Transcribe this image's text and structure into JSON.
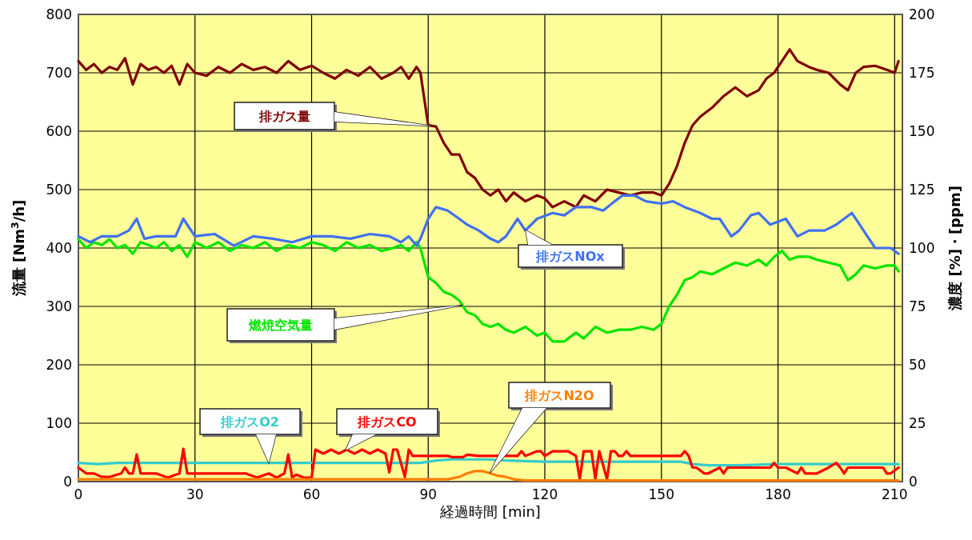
{
  "chart_data": {
    "type": "line",
    "xlabel": "経過時間 [min]",
    "ylabel": "流量 [Nm$^{3}$/h]",
    "y2label": "濃度 [%]・[ppm]",
    "xlim": [
      0,
      212
    ],
    "xticks": [
      0,
      30,
      60,
      90,
      120,
      150,
      180,
      210
    ],
    "ylim": [
      0,
      800
    ],
    "yticks": [
      0,
      100,
      200,
      300,
      400,
      500,
      600,
      700,
      800
    ],
    "y2lim": [
      0,
      200
    ],
    "y2ticks": [
      0,
      25,
      50,
      75,
      100,
      125,
      150,
      175,
      200
    ],
    "grid": true,
    "marker": "none",
    "line_style": "solid",
    "series": [
      {
        "name": "排ガス量",
        "color": "#800000",
        "x": [
          0,
          2,
          4,
          6,
          8,
          10,
          12,
          14,
          16,
          18,
          20,
          22,
          24,
          26,
          28,
          30,
          33,
          36,
          39,
          42,
          45,
          48,
          51,
          54,
          57,
          60,
          63,
          66,
          69,
          72,
          75,
          78,
          81,
          83,
          85,
          87,
          88,
          90,
          92,
          94,
          96,
          98,
          100,
          102,
          104,
          106,
          108,
          110,
          112,
          115,
          118,
          120,
          122,
          125,
          128,
          130,
          133,
          136,
          139,
          142,
          145,
          148,
          150,
          152,
          154,
          156,
          158,
          160,
          163,
          166,
          169,
          172,
          175,
          177,
          179,
          181,
          183,
          185,
          188,
          190,
          193,
          196,
          198,
          200,
          202,
          205,
          208,
          210,
          211
        ],
        "values": [
          720,
          705,
          715,
          700,
          710,
          705,
          725,
          680,
          715,
          705,
          710,
          700,
          712,
          680,
          715,
          700,
          695,
          710,
          700,
          715,
          705,
          710,
          700,
          720,
          705,
          712,
          700,
          690,
          705,
          695,
          710,
          690,
          700,
          710,
          690,
          710,
          700,
          610,
          608,
          580,
          560,
          560,
          530,
          520,
          500,
          490,
          500,
          480,
          495,
          480,
          490,
          485,
          470,
          480,
          470,
          490,
          480,
          500,
          495,
          490,
          495,
          495,
          490,
          510,
          540,
          580,
          610,
          625,
          640,
          660,
          675,
          660,
          670,
          690,
          700,
          720,
          740,
          720,
          710,
          705,
          700,
          680,
          670,
          700,
          710,
          712,
          705,
          700,
          720
        ]
      },
      {
        "name": "燃焼空気量",
        "color": "#00e600",
        "x": [
          0,
          2,
          4,
          6,
          8,
          10,
          12,
          14,
          16,
          18,
          20,
          22,
          24,
          26,
          28,
          30,
          33,
          36,
          39,
          42,
          45,
          48,
          51,
          54,
          57,
          60,
          63,
          66,
          69,
          72,
          75,
          78,
          81,
          83,
          85,
          87,
          88,
          90,
          92,
          94,
          96,
          98,
          100,
          102,
          104,
          106,
          108,
          110,
          112,
          115,
          118,
          120,
          122,
          125,
          128,
          130,
          133,
          136,
          139,
          142,
          145,
          148,
          150,
          152,
          154,
          156,
          158,
          160,
          163,
          166,
          169,
          172,
          175,
          177,
          179,
          181,
          183,
          185,
          188,
          190,
          193,
          196,
          198,
          200,
          202,
          205,
          208,
          210,
          211
        ],
        "values": [
          415,
          400,
          410,
          405,
          415,
          400,
          405,
          390,
          410,
          405,
          400,
          410,
          395,
          405,
          385,
          410,
          400,
          410,
          395,
          405,
          400,
          410,
          395,
          405,
          400,
          410,
          405,
          395,
          410,
          400,
          405,
          395,
          400,
          405,
          395,
          410,
          400,
          350,
          340,
          325,
          320,
          310,
          290,
          285,
          270,
          265,
          270,
          260,
          255,
          265,
          250,
          255,
          240,
          240,
          255,
          245,
          265,
          255,
          260,
          260,
          265,
          260,
          270,
          300,
          320,
          345,
          350,
          360,
          355,
          365,
          375,
          370,
          380,
          370,
          385,
          395,
          380,
          385,
          385,
          380,
          375,
          370,
          345,
          355,
          370,
          365,
          370,
          370,
          360
        ]
      },
      {
        "name": "排ガスNOx",
        "color": "#4070f0",
        "axis": "y2",
        "x": [
          0,
          3,
          6,
          10,
          13,
          15,
          17,
          20,
          25,
          27,
          30,
          35,
          40,
          45,
          50,
          55,
          60,
          65,
          70,
          75,
          80,
          83,
          85,
          87,
          88,
          90,
          92,
          95,
          98,
          100,
          103,
          106,
          108,
          110,
          113,
          115,
          118,
          122,
          125,
          128,
          132,
          135,
          138,
          140,
          143,
          146,
          150,
          153,
          156,
          160,
          163,
          165,
          168,
          170,
          173,
          175,
          178,
          182,
          185,
          188,
          192,
          195,
          197,
          199,
          202,
          205,
          207,
          209,
          211
        ],
        "values": [
          105,
          102.5,
          105,
          105,
          107.5,
          112.5,
          104,
          105,
          105,
          112.5,
          105,
          106,
          101,
          105,
          104,
          102.5,
          105,
          105,
          104,
          106,
          105,
          102.5,
          105,
          101,
          104,
          112.5,
          117.5,
          116,
          112.5,
          110,
          107.5,
          104,
          102.5,
          105,
          112.5,
          107.5,
          112.5,
          115,
          114,
          117.5,
          117.5,
          116,
          120,
          122.5,
          122.5,
          120,
          119,
          120,
          117.5,
          115,
          112.5,
          112.5,
          105,
          107.5,
          114,
          115,
          110,
          112.5,
          105,
          107.5,
          107.5,
          110,
          112.5,
          115,
          107.5,
          100,
          100,
          100,
          97.5
        ]
      },
      {
        "name": "排ガスO2",
        "color": "#33cccc",
        "axis": "y2",
        "x": [
          0,
          5,
          10,
          20,
          30,
          40,
          50,
          60,
          70,
          80,
          88,
          92,
          96,
          100,
          105,
          110,
          120,
          130,
          140,
          150,
          155,
          158,
          162,
          170,
          180,
          190,
          200,
          211
        ],
        "values": [
          8,
          7.5,
          8,
          8,
          8,
          8,
          8,
          8,
          8,
          8,
          8,
          9,
          9.5,
          9.5,
          9.5,
          9,
          8.5,
          8.5,
          8.5,
          8.5,
          8.5,
          7.5,
          7,
          7,
          7.5,
          7.5,
          7.5,
          7.5
        ]
      },
      {
        "name": "排ガスCO",
        "color": "#ff0000",
        "axis": "y2",
        "x": [
          0,
          2,
          4,
          6,
          8,
          11,
          12,
          13,
          14,
          15,
          16,
          17,
          20,
          23,
          26,
          27,
          28,
          30,
          33,
          36,
          40,
          43,
          46,
          49,
          51,
          53,
          54,
          55,
          56,
          58,
          60,
          61,
          63,
          65,
          67,
          69,
          71,
          73,
          75,
          77,
          79,
          80,
          81,
          82,
          84,
          85,
          86,
          88,
          89,
          92,
          95,
          96,
          99,
          100,
          103,
          108,
          113,
          114,
          115,
          118,
          119,
          120,
          122,
          126,
          128,
          129,
          130,
          132,
          133,
          134,
          136,
          137,
          138,
          139,
          140,
          141,
          142,
          150,
          154,
          155,
          156,
          157,
          158,
          159,
          161,
          162,
          165,
          166,
          167,
          172,
          178,
          179,
          180,
          182,
          185,
          186,
          187,
          188,
          190,
          193,
          195,
          196,
          197,
          198,
          205,
          207,
          208,
          209,
          211
        ],
        "values": [
          6,
          3.5,
          3.5,
          2,
          2,
          3.5,
          6,
          3.5,
          3.5,
          11.6,
          3.5,
          3.5,
          3.5,
          1.7,
          3.5,
          14,
          3.5,
          3.5,
          3.5,
          3.5,
          3.5,
          3.5,
          1.7,
          3.5,
          1.7,
          3.5,
          11.6,
          1.7,
          3,
          1.7,
          1.7,
          13.7,
          12,
          13.7,
          12,
          13.7,
          12,
          13.7,
          12,
          13.7,
          12,
          4,
          13.7,
          13.7,
          2,
          13.7,
          11,
          11,
          11,
          11,
          11,
          10.5,
          10.5,
          11.5,
          11,
          11,
          11,
          13,
          11,
          13,
          13,
          11,
          13,
          13,
          11,
          1,
          13,
          13,
          1,
          13,
          1,
          13,
          13,
          11,
          11,
          13,
          11,
          11,
          11,
          11,
          13,
          11,
          6,
          6,
          3.5,
          3.5,
          6,
          3.5,
          6,
          6,
          6,
          8,
          6,
          6,
          3.5,
          6,
          3.5,
          3.5,
          3.5,
          6,
          8,
          6,
          3.5,
          6,
          6,
          6,
          3.5,
          3.5,
          6
        ]
      },
      {
        "name": "排ガスN2O",
        "color": "#ff7f00",
        "axis": "y2",
        "x": [
          0,
          20,
          40,
          60,
          80,
          95,
          98,
          100,
          102,
          104,
          106,
          108,
          110,
          112,
          115,
          120,
          130,
          150,
          180,
          211
        ],
        "values": [
          1,
          1,
          1,
          1,
          1,
          1,
          2,
          3.5,
          4.5,
          4.5,
          3.5,
          2.5,
          2,
          1,
          0.5,
          0.5,
          0.5,
          0.5,
          0.5,
          0.5
        ]
      }
    ]
  }
}
